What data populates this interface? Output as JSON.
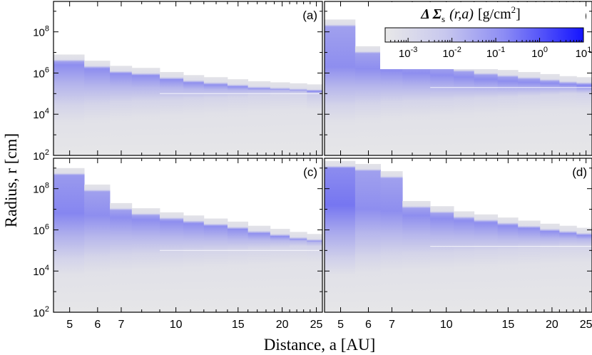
{
  "chart_data": {
    "type": "heatmap",
    "xlabel": "Distance, a [AU]",
    "ylabel": "Radius, r [cm]",
    "x_scale": "log",
    "y_scale": "log",
    "x_ticks": [
      5,
      6,
      7,
      10,
      15,
      20,
      25
    ],
    "x_tick_labels": [
      "5",
      "6",
      "7",
      "10",
      "15",
      "20",
      "25"
    ],
    "y_ticks": [
      100,
      10000,
      1000000,
      100000000
    ],
    "y_tick_label_mantissa": "10",
    "y_tick_label_exponents": [
      "2",
      "4",
      "6",
      "8"
    ],
    "xlim": [
      4.5,
      26
    ],
    "ylim": [
      100,
      3000000000.0
    ],
    "colorbar": {
      "title_symbol": "Δ Σ",
      "title_subscript": "s",
      "title_args": "(r,a)",
      "title_units": "[g/cm",
      "title_units_exp": "2",
      "title_units_close": "]",
      "scale": "log",
      "min": 0.0003,
      "max": 10,
      "tick_mantissa": "10",
      "tick_exponents": [
        "-3",
        "-2",
        "-1",
        "0",
        "1"
      ],
      "low_color": "#e6e6e6",
      "high_color": "#1a1aff"
    },
    "bin_edges_au": [
      4.5,
      5.5,
      6.5,
      7.5,
      9,
      10.5,
      12,
      14,
      16,
      18.5,
      21,
      23.5,
      26
    ],
    "panels": [
      {
        "label": "(a)",
        "top_log10": [
          6.9,
          6.6,
          6.35,
          6.25,
          6.05,
          5.9,
          5.8,
          5.7,
          5.6,
          5.55,
          5.5,
          5.45
        ],
        "peak_log10": [
          6.4,
          6.2,
          6.05,
          5.95,
          5.85,
          5.7,
          5.6,
          5.5,
          5.45,
          5.4,
          5.3,
          5.25
        ],
        "line_log10": 5.0,
        "edge_log10": [
          4.4,
          4.5,
          4.6,
          4.65,
          4.7,
          4.75,
          4.8,
          4.85,
          4.9,
          4.95,
          5.0,
          5.0
        ],
        "intensity": [
          0.55,
          0.55,
          0.55,
          0.55,
          0.55,
          0.55,
          0.55,
          0.55,
          0.55,
          0.55,
          0.6,
          0.85
        ]
      },
      {
        "label": "(b)",
        "top_log10": [
          8.6,
          7.3,
          6.9,
          6.7,
          6.55,
          6.4,
          6.25,
          6.15,
          6.05,
          5.95,
          5.85,
          5.8
        ],
        "peak_log10": [
          6.3,
          6.2,
          6.1,
          6.0,
          5.9,
          5.8,
          5.7,
          5.6,
          5.55,
          5.5,
          5.45,
          5.4
        ],
        "line_log10": 5.3,
        "edge_log10": [
          4.4,
          4.5,
          4.6,
          4.65,
          4.7,
          4.75,
          4.8,
          4.85,
          4.9,
          4.95,
          5.0,
          5.0
        ],
        "intensity": [
          0.55,
          0.55,
          0.55,
          0.55,
          0.55,
          0.55,
          0.55,
          0.55,
          0.55,
          0.55,
          0.55,
          0.6
        ]
      },
      {
        "label": "(c)",
        "top_log10": [
          9.0,
          8.2,
          7.3,
          7.05,
          6.85,
          6.7,
          6.55,
          6.4,
          6.2,
          6.05,
          5.9,
          5.8
        ],
        "peak_log10": [
          6.8,
          6.7,
          6.6,
          6.5,
          6.4,
          6.3,
          6.2,
          6.05,
          5.95,
          5.85,
          5.75,
          5.65
        ],
        "line_log10": 5.0,
        "edge_log10": [
          4.6,
          4.7,
          4.8,
          4.85,
          4.9,
          4.95,
          5.0,
          5.05,
          5.1,
          5.15,
          5.2,
          5.2
        ],
        "intensity": [
          0.6,
          0.55,
          0.55,
          0.55,
          0.55,
          0.55,
          0.55,
          0.55,
          0.55,
          0.55,
          0.55,
          0.6
        ]
      },
      {
        "label": "(d)",
        "top_log10": [
          9.35,
          9.2,
          8.85,
          7.4,
          7.15,
          6.9,
          6.75,
          6.6,
          6.45,
          6.3,
          6.2,
          6.1
        ],
        "peak_log10": [
          7.2,
          7.0,
          6.9,
          6.7,
          6.55,
          6.45,
          6.35,
          6.2,
          6.1,
          6.0,
          5.95,
          5.9
        ],
        "line_log10": 5.2,
        "edge_log10": [
          4.6,
          4.7,
          4.8,
          4.85,
          4.9,
          4.95,
          5.0,
          5.05,
          5.1,
          5.15,
          5.2,
          5.2
        ],
        "intensity": [
          0.7,
          0.55,
          0.55,
          0.55,
          0.55,
          0.55,
          0.55,
          0.55,
          0.55,
          0.55,
          0.55,
          0.55
        ]
      }
    ]
  }
}
